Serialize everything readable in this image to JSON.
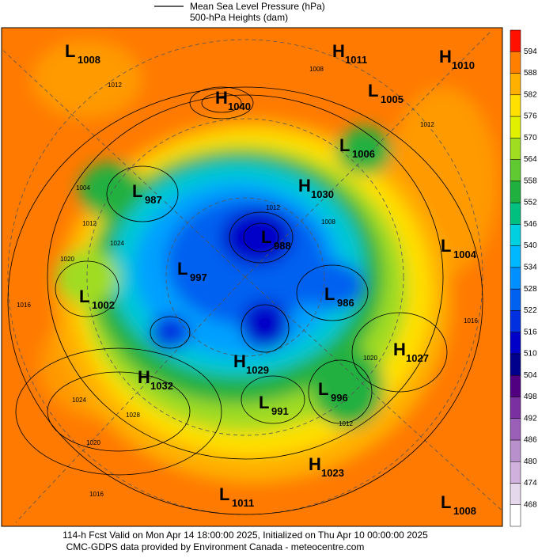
{
  "header": {
    "legend_line_1": "Mean Sea Level Pressure (hPa)",
    "legend_line_2": "500-hPa Heights (dam)"
  },
  "colorbar": {
    "ticks": [
      468,
      474,
      480,
      486,
      492,
      498,
      504,
      510,
      516,
      522,
      528,
      534,
      540,
      546,
      552,
      558,
      564,
      570,
      576,
      582,
      588,
      594
    ],
    "colors": [
      "#ffffff",
      "#e6d8ec",
      "#d0b0dc",
      "#b890cc",
      "#9a60b8",
      "#7a30a0",
      "#500080",
      "#00008c",
      "#0000c8",
      "#0030e0",
      "#0060f0",
      "#0090ff",
      "#00b8ff",
      "#00d0e0",
      "#00c080",
      "#20b040",
      "#60c830",
      "#a0dc20",
      "#e0f000",
      "#ffe000",
      "#ffb000",
      "#ff8000",
      "#ff1000"
    ]
  },
  "pressure_centers": [
    {
      "symbol": "L",
      "value": 1008
    },
    {
      "symbol": "H",
      "value": 1011
    },
    {
      "symbol": "H",
      "value": 1010
    },
    {
      "symbol": "H",
      "value": 1040
    },
    {
      "symbol": "L",
      "value": 1005
    },
    {
      "symbol": "L",
      "value": 1006
    },
    {
      "symbol": "L",
      "value": 987
    },
    {
      "symbol": "H",
      "value": 1030
    },
    {
      "symbol": "L",
      "value": 988
    },
    {
      "symbol": "L",
      "value": 1004
    },
    {
      "symbol": "L",
      "value": 997
    },
    {
      "symbol": "L",
      "value": 1002
    },
    {
      "symbol": "L",
      "value": 986
    },
    {
      "symbol": "H",
      "value": 1027
    },
    {
      "symbol": "H",
      "value": 1029
    },
    {
      "symbol": "H",
      "value": 1032
    },
    {
      "symbol": "L",
      "value": 996
    },
    {
      "symbol": "L",
      "value": 991
    },
    {
      "symbol": "H",
      "value": 1023
    },
    {
      "symbol": "L",
      "value": 1011
    },
    {
      "symbol": "L",
      "value": 1008
    }
  ],
  "contour_labels": [
    1012,
    1008,
    1012,
    1004,
    1012,
    1024,
    1020,
    1016,
    1012,
    1008,
    1016,
    1020,
    1024,
    1028,
    1020,
    1016,
    1012
  ],
  "footer": {
    "line_1": "114-h Fcst Valid on Mon Apr 14 18:00:00 2025, Initialized on Thu Apr 10 00:00:00 2025",
    "line_2": "CMC-GDPS data provided by Environment Canada - meteocentre.com"
  }
}
